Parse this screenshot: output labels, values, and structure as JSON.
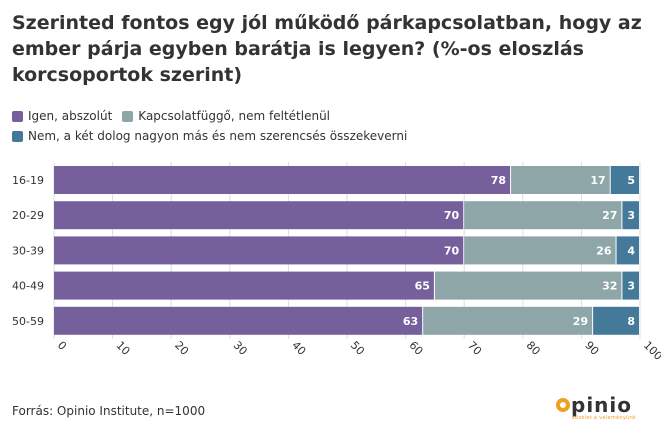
{
  "chart_data": {
    "type": "bar",
    "orientation": "horizontal",
    "stacked": true,
    "title": "Szerinted fontos egy jól működő párkapcsolatban, hogy az ember párja egyben barátja is legyen? (%-os eloszlás korcsoportok szerint)",
    "categories": [
      "16-19",
      "20-29",
      "30-39",
      "40-49",
      "50-59"
    ],
    "series": [
      {
        "name": "Igen, abszolút",
        "color": "#76609c",
        "values": [
          78,
          70,
          70,
          65,
          63
        ]
      },
      {
        "name": "Kapcsolatfüggő, nem feltétlenül",
        "color": "#8ea6a7",
        "values": [
          17,
          27,
          26,
          32,
          29
        ]
      },
      {
        "name": "Nem, a két dolog nagyon más és nem szerencsés összekeverni",
        "color": "#44799a",
        "values": [
          5,
          3,
          4,
          3,
          8
        ]
      }
    ],
    "xlim": [
      0,
      100
    ],
    "xticks": [
      0,
      10,
      20,
      30,
      40,
      50,
      60,
      70,
      80,
      90,
      100
    ],
    "grid": true,
    "legend_position": "top-left"
  },
  "source": "Forrás: Opinio Institute, n=1000",
  "logo": {
    "word": "pinio",
    "tagline": "közélet a véleményünk",
    "accent_color": "#f0a020"
  }
}
